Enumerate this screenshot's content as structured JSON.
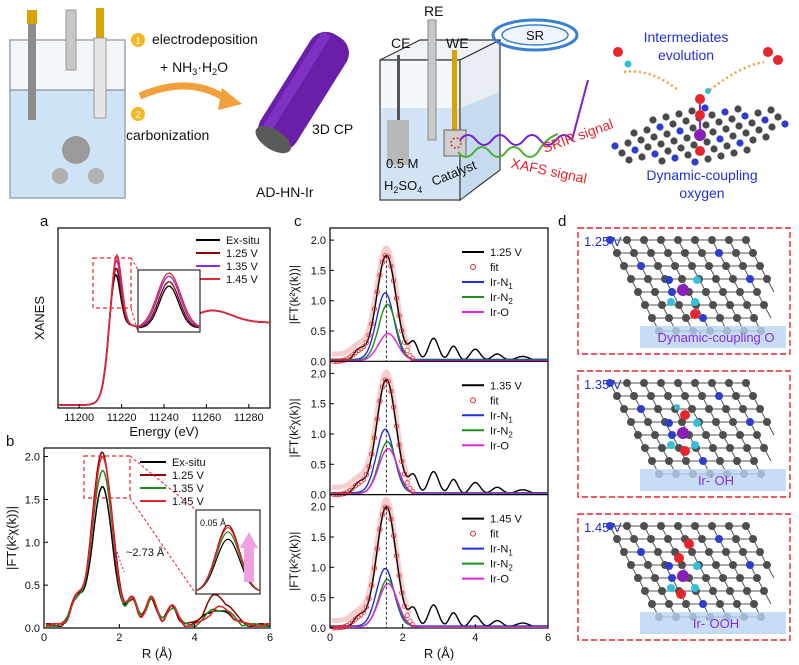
{
  "scheme": {
    "step1_num": "1",
    "step1_line1": "electrodeposition",
    "step1_line2": "+ NH",
    "step1_sub": "3",
    "step1_tail": "·H",
    "step1_sub2": "2",
    "step1_end": "O",
    "step2_num": "2",
    "step2_text": "carbonization",
    "cp_label": "3D CP",
    "catalyst_name": "AD-HN-Ir",
    "ce": "CE",
    "re": "RE",
    "we": "WE",
    "sr": "SR",
    "electrolyte_line1": "0.5 M",
    "electrolyte_line2": "H",
    "electrolyte_sub1": "2",
    "electrolyte_mid": "SO",
    "electrolyte_sub2": "4",
    "catalyst_label": "Catalyst",
    "srir": "SRIR signal",
    "xafs": "XAFS signal",
    "intermediates_1": "Intermediates",
    "intermediates_2": "evolution",
    "dynamic_1": "Dynamic-coupling",
    "dynamic_2": "oxygen",
    "colors": {
      "accent_blue": "#1f2fe0",
      "signal_red": "#e8242c",
      "arrow_orange": "#f2a03c",
      "badge_yellow": "#f5b820"
    }
  },
  "panels": {
    "a": "a",
    "b": "b",
    "c": "c",
    "d": "d"
  },
  "panel_d": [
    {
      "voltage": "1.25 V",
      "label": "Dynamic-coupling O"
    },
    {
      "voltage": "1.35 V",
      "label": "Ir-˙OH"
    },
    {
      "voltage": "1.45 V",
      "label": "Ir-˙OOH"
    }
  ],
  "chart_data": [
    {
      "id": "a",
      "type": "line",
      "ylabel": "XANES",
      "xlabel": "Energy (eV)",
      "xlim": [
        11190,
        11290
      ],
      "x_ticks": [
        "11200",
        "11220",
        "11240",
        "11260",
        "11280"
      ],
      "legend": "top-right",
      "series": [
        {
          "name": "Ex-situ",
          "color": "#000000"
        },
        {
          "name": "1.25 V",
          "color": "#8b0000"
        },
        {
          "name": "1.35 V",
          "color": "#8a2be2"
        },
        {
          "name": "1.45 V",
          "color": "#e8242c"
        }
      ],
      "peak_heights": [
        0.88,
        0.92,
        0.97,
        1.0
      ]
    },
    {
      "id": "b",
      "type": "line",
      "ylabel": "|FT(k²χ(k))|",
      "xlabel": "R (Å)",
      "xlim": [
        0,
        6
      ],
      "ylim": [
        0,
        2.1
      ],
      "x_ticks": [
        "0",
        "2",
        "4",
        "6"
      ],
      "y_ticks": [
        "0.0",
        "0.5",
        "1.0",
        "1.5",
        "2.0"
      ],
      "annotation": "~2.73 Å",
      "inset_label": "0.05 Å",
      "legend": "top-right",
      "series": [
        {
          "name": "Ex-situ",
          "color": "#000000",
          "peak": 1.6
        },
        {
          "name": "1.25 V",
          "color": "#8b0000",
          "peak": 2.02
        },
        {
          "name": "1.35 V",
          "color": "#1e8c1e",
          "peak": 1.82
        },
        {
          "name": "1.45 V",
          "color": "#e8242c",
          "peak": 1.95
        }
      ]
    },
    {
      "id": "c",
      "type": "line",
      "ylabel": "|FT(k²χ(k))|",
      "xlabel": "R (Å)",
      "xlim": [
        0,
        6
      ],
      "ylim": [
        0,
        2.2
      ],
      "x_ticks": [
        "0",
        "2",
        "4",
        "6"
      ],
      "y_ticks": [
        "0.0",
        "0.5",
        "1.0",
        "1.5",
        "2.0"
      ],
      "subpanels": [
        {
          "voltage": "1.25 V",
          "data_peak": 1.75,
          "n1": 1.1,
          "n2": 0.92,
          "o": 0.45
        },
        {
          "voltage": "1.35 V",
          "data_peak": 1.9,
          "n1": 1.05,
          "n2": 0.85,
          "o": 0.75
        },
        {
          "voltage": "1.45 V",
          "data_peak": 2.0,
          "n1": 0.95,
          "n2": 0.78,
          "o": 0.72
        }
      ],
      "legend_names": [
        "fit",
        "Ir-N",
        "Ir-N",
        "Ir-O"
      ],
      "legend_subs": [
        "",
        "1",
        "2",
        ""
      ],
      "legend_colors": [
        "#e8242c",
        "#1f2fe0",
        "#1e8c1e",
        "#e020e0"
      ]
    }
  ]
}
